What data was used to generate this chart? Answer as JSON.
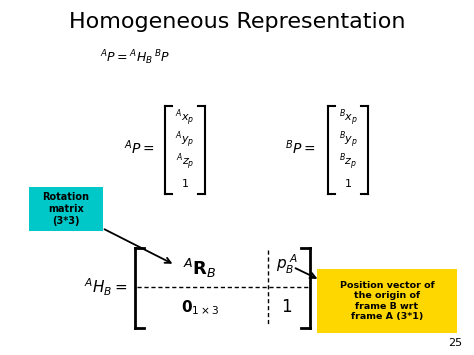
{
  "title": "Homogeneous Representation",
  "bg_color": "#ffffff",
  "title_color": "#000000",
  "title_fontsize": 16,
  "slide_number": "25",
  "cyan_box_color": "#00c8c8",
  "yellow_box_color": "#ffd700",
  "rotation_box_text": "Rotation\nmatrix\n(3*3)",
  "position_box_text": "Position vector of\nthe origin of\nframe B wrt\nframe A (3*1)"
}
